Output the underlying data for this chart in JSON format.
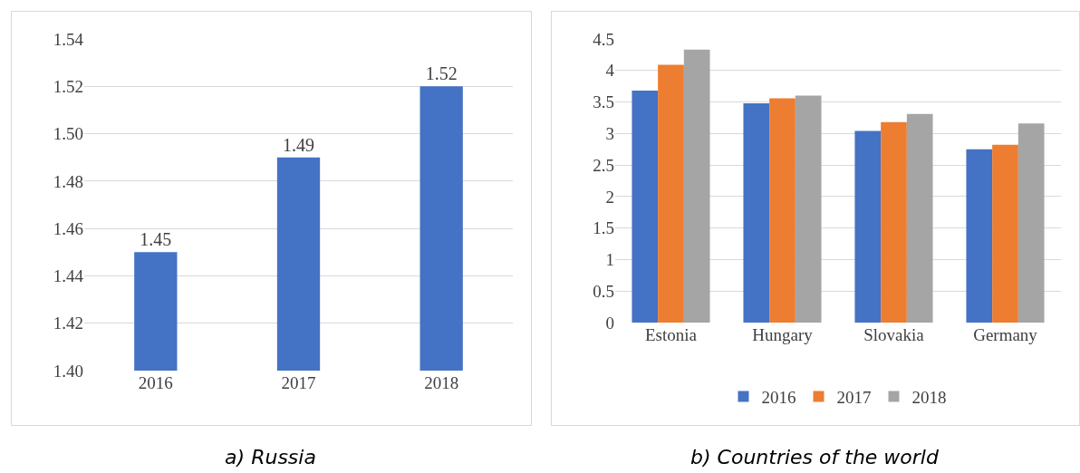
{
  "chart_data": [
    {
      "type": "bar",
      "title": "a) Russia",
      "categories": [
        "2016",
        "2017",
        "2018"
      ],
      "values": [
        1.45,
        1.49,
        1.52
      ],
      "color": "#4472c4",
      "data_labels": true,
      "ylim": [
        1.4,
        1.54
      ],
      "yticks": [
        {
          "value": 1.4,
          "label": "1.40"
        },
        {
          "value": 1.42,
          "label": "1.42"
        },
        {
          "value": 1.44,
          "label": "1.44"
        },
        {
          "value": 1.46,
          "label": "1.46"
        },
        {
          "value": 1.48,
          "label": "1.48"
        },
        {
          "value": 1.5,
          "label": "1.50"
        },
        {
          "value": 1.52,
          "label": "1.52"
        },
        {
          "value": 1.54,
          "label": "1.54"
        }
      ],
      "grid": "y",
      "legend": false
    },
    {
      "type": "bar",
      "title": "b) Countries of the world",
      "categories": [
        "Estonia",
        "Hungary",
        "Slovakia",
        "Germany"
      ],
      "series": [
        {
          "name": "2016",
          "color": "#4472c4",
          "values": [
            3.68,
            3.48,
            3.04,
            2.75
          ]
        },
        {
          "name": "2017",
          "color": "#ed7d31",
          "values": [
            4.09,
            3.56,
            3.18,
            2.82
          ]
        },
        {
          "name": "2018",
          "color": "#a5a5a5",
          "values": [
            4.33,
            3.6,
            3.31,
            3.16
          ]
        }
      ],
      "ylim": [
        0,
        4.5
      ],
      "yticks": [
        0,
        0.5,
        1,
        1.5,
        2,
        2.5,
        3,
        3.5,
        4,
        4.5
      ],
      "grid": "y",
      "legend": "bottom"
    }
  ]
}
